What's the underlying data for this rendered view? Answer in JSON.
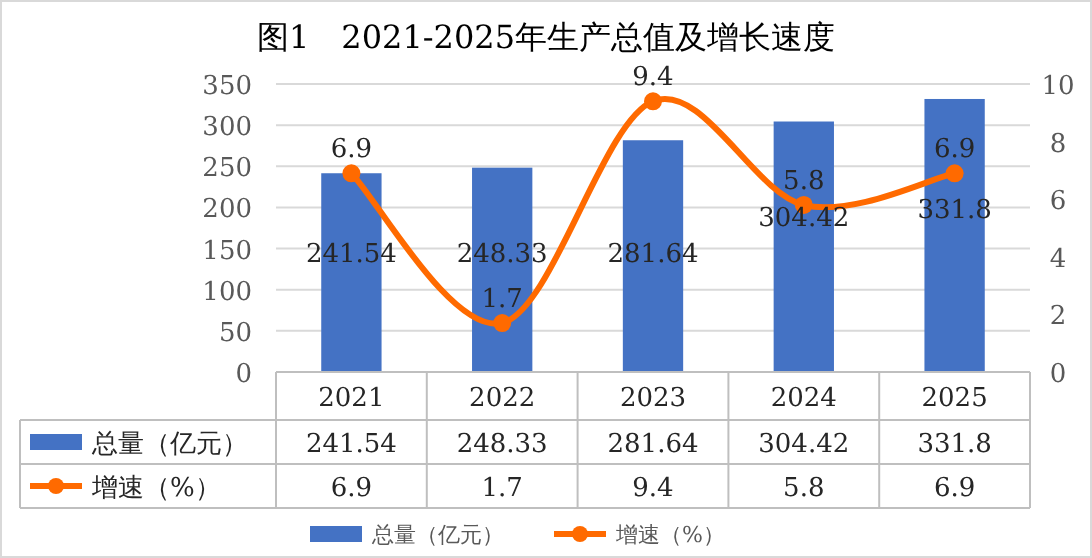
{
  "chart_data": {
    "type": "bar",
    "title": "图1　2021-2025年生产总值及增长速度",
    "categories": [
      "2021",
      "2022",
      "2023",
      "2024",
      "2025"
    ],
    "series": [
      {
        "name": "总量（亿元）",
        "type": "bar",
        "color": "#4472c4",
        "values": [
          241.54,
          248.33,
          281.64,
          304.42,
          331.8
        ]
      },
      {
        "name": "增速（%）",
        "type": "line",
        "axis": "y2",
        "color": "#ff6a00",
        "marker": "circle",
        "values": [
          6.9,
          1.7,
          9.4,
          5.8,
          6.9
        ]
      }
    ],
    "annotations": [
      "241.54",
      "248.33",
      "281.64",
      "304.42",
      "331.8",
      "6.9",
      "1.7",
      "9.4",
      "5.8",
      "6.9"
    ],
    "ylim": [
      0,
      350
    ],
    "yticks": [
      0,
      50,
      100,
      150,
      200,
      250,
      300,
      350
    ],
    "y2lim": [
      0,
      10
    ],
    "y2ticks": [
      0,
      2,
      4,
      6,
      8,
      10
    ],
    "grid": "y",
    "data_labels": true,
    "legend": "bottom"
  }
}
